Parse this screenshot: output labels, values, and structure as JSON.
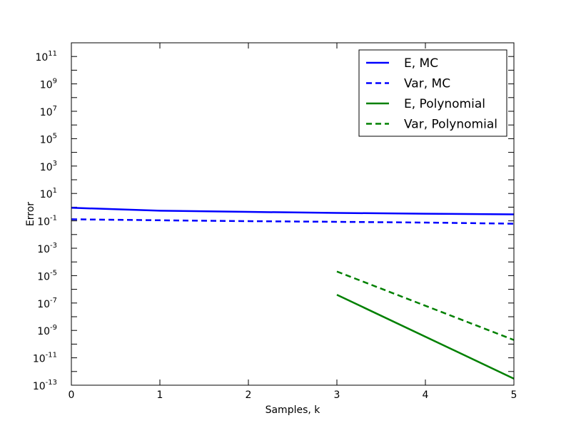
{
  "chart_data": {
    "type": "line",
    "xlabel": "Samples, k",
    "ylabel": "Error",
    "xlim": [
      0,
      5
    ],
    "ylim": [
      1e-13,
      1000000000000.0
    ],
    "yscale": "log",
    "xticks": [
      "0",
      "1",
      "2",
      "3",
      "4",
      "5"
    ],
    "yticks": [
      {
        "base": "10",
        "exp": "-13"
      },
      {
        "base": "10",
        "exp": "-11"
      },
      {
        "base": "10",
        "exp": "-9"
      },
      {
        "base": "10",
        "exp": "-7"
      },
      {
        "base": "10",
        "exp": "-5"
      },
      {
        "base": "10",
        "exp": "-3"
      },
      {
        "base": "10",
        "exp": "-1"
      },
      {
        "base": "10",
        "exp": "1"
      },
      {
        "base": "10",
        "exp": "3"
      },
      {
        "base": "10",
        "exp": "5"
      },
      {
        "base": "10",
        "exp": "7"
      },
      {
        "base": "10",
        "exp": "9"
      },
      {
        "base": "10",
        "exp": "11"
      }
    ],
    "legend_position": "top-right",
    "grid": false,
    "series": [
      {
        "name": "E, MC",
        "color": "#0000ff",
        "style": "solid",
        "x": [
          0,
          1,
          2,
          3,
          4,
          5
        ],
        "y": [
          0.9,
          0.55,
          0.45,
          0.38,
          0.33,
          0.3
        ]
      },
      {
        "name": "Var, MC",
        "color": "#0000ff",
        "style": "dashed",
        "x": [
          0,
          1,
          2,
          3,
          4,
          5
        ],
        "y": [
          0.13,
          0.11,
          0.095,
          0.085,
          0.075,
          0.062
        ]
      },
      {
        "name": "E, Polynomial",
        "color": "#008000",
        "style": "solid",
        "x": [
          3,
          5
        ],
        "y": [
          4e-07,
          3e-13
        ]
      },
      {
        "name": "Var, Polynomial",
        "color": "#008000",
        "style": "dashed",
        "x": [
          3,
          5
        ],
        "y": [
          2e-05,
          2e-10
        ]
      }
    ]
  }
}
